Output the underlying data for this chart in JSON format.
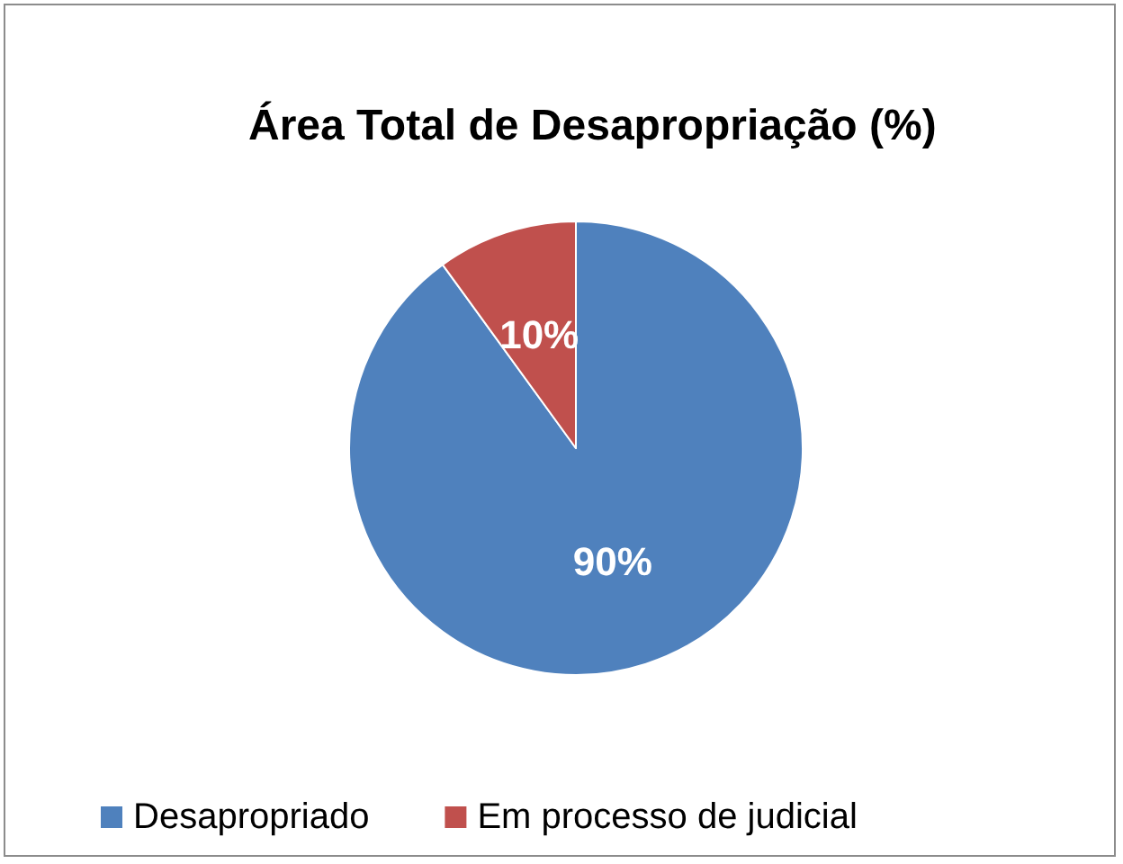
{
  "chart_data": {
    "type": "pie",
    "title": "Área Total de Desapropriação (%)",
    "categories": [
      "Desapropriado",
      "Em processo de judicial"
    ],
    "values": [
      90,
      10
    ],
    "colors": [
      "#4f81bd",
      "#c0504d"
    ],
    "value_labels": [
      "90%",
      "10%"
    ],
    "legend": "bottom"
  }
}
